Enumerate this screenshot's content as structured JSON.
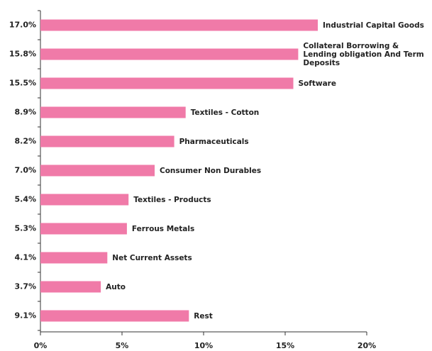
{
  "chart_data": {
    "type": "bar",
    "categories": [
      "Industrial Capital Goods",
      "Collateral Borrowing & Lending obligation And Term Deposits",
      "Software",
      "Textiles - Cotton",
      "Pharmaceuticals",
      "Consumer Non Durables",
      "Textiles - Products",
      "Ferrous Metals",
      "Net Current Assets",
      "Auto",
      "Rest"
    ],
    "values": [
      17.0,
      15.8,
      15.5,
      8.9,
      8.2,
      7.0,
      5.4,
      5.3,
      4.1,
      3.7,
      9.1
    ],
    "value_labels": [
      "17.0%",
      "15.8%",
      "15.5%",
      "8.9%",
      "8.2%",
      "7.0%",
      "5.4%",
      "5.3%",
      "4.1%",
      "3.7%",
      "9.1%"
    ],
    "color": "#f07aa8",
    "xlim": [
      0,
      20
    ],
    "xticks": [
      {
        "value": 0,
        "label": "0%"
      },
      {
        "value": 5,
        "label": "5%"
      },
      {
        "value": 10,
        "label": "10%"
      },
      {
        "value": 15,
        "label": "15%"
      },
      {
        "value": 20,
        "label": "20%"
      }
    ]
  }
}
